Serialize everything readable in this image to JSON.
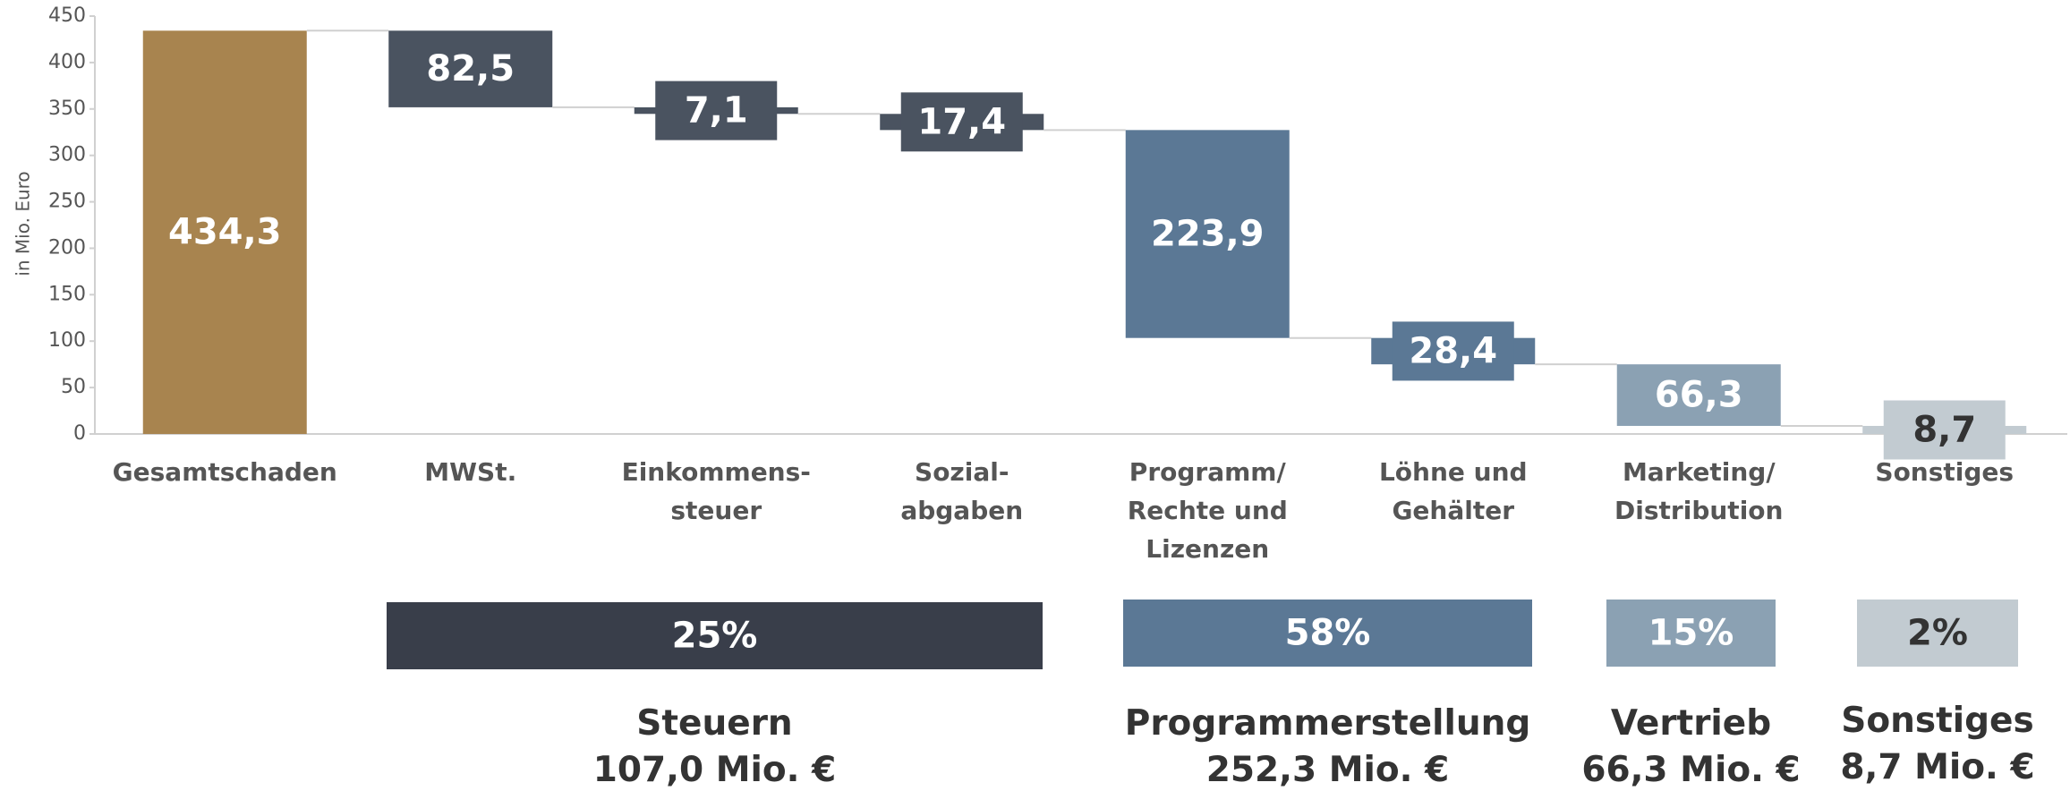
{
  "chart_data": {
    "type": "waterfall",
    "y_label": "in Mio. Euro",
    "categories": [
      "Gesamtschaden",
      "MWSt.",
      "Einkommens-\nsteuer",
      "Sozial-\nabgaben",
      "Programm/\nRechte und\nLizenzen",
      "Löhne und\nGehälter",
      "Marketing/\nDistribution",
      "Sonstiges"
    ],
    "measure": [
      "total",
      "decrease",
      "decrease",
      "decrease",
      "decrease",
      "decrease",
      "decrease",
      "decrease"
    ],
    "values": [
      434.3,
      82.5,
      7.1,
      17.4,
      223.9,
      28.4,
      66.3,
      8.7
    ],
    "value_labels": [
      "434,3",
      "82,5",
      "7,1",
      "17,4",
      "223,9",
      "28,4",
      "66,3",
      "8,7"
    ],
    "colors": [
      "#a8844f",
      "#4a5360",
      "#4a5360",
      "#4a5360",
      "#5b7895",
      "#5b7895",
      "#8ba1b3",
      "#c2cbd1"
    ],
    "ylim": [
      0,
      450
    ],
    "yticks": [
      0,
      50,
      100,
      150,
      200,
      250,
      300,
      350,
      400,
      450
    ],
    "grid": false,
    "groups": [
      {
        "name": "Steuern",
        "share_label": "25%",
        "amount_label": "107,0 Mio. €",
        "color": "#393e4a"
      },
      {
        "name": "Programmerstellung",
        "share_label": "58%",
        "amount_label": "252,3 Mio. €",
        "color": "#5b7895"
      },
      {
        "name": "Vertrieb",
        "share_label": "15%",
        "amount_label": "66,3 Mio. €",
        "color": "#8ba1b3"
      },
      {
        "name": "Sonstiges",
        "share_label": "2%",
        "amount_label": "8,7 Mio. €",
        "color": "#c2cbd1"
      }
    ]
  }
}
